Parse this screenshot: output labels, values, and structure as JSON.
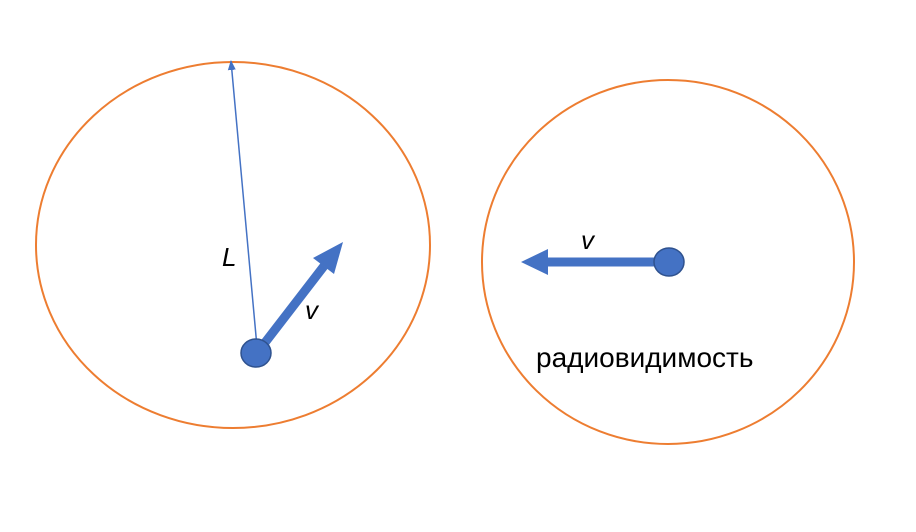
{
  "labels": {
    "range_label": "L",
    "velocity_label_left": "v",
    "velocity_label_right": "v",
    "caption_right": "радиовидимость"
  },
  "colors": {
    "circle_stroke": "#ED7D31",
    "node_fill": "#4472C4",
    "node_stroke": "#2F528F",
    "arrow": "#4472C4"
  }
}
